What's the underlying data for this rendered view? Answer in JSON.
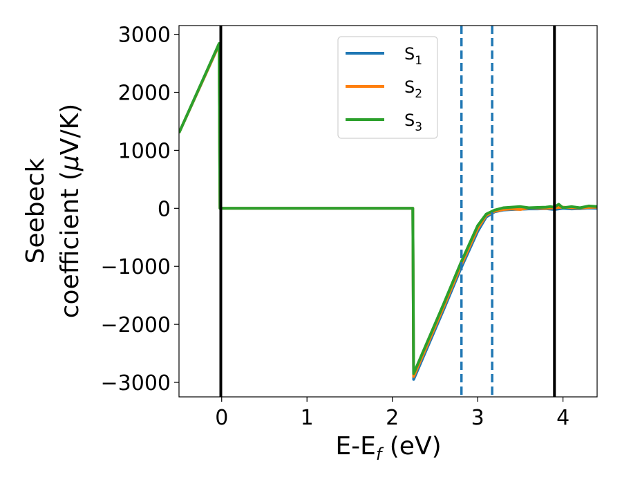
{
  "chart_data": {
    "type": "line",
    "xlabel": "E-E",
    "xlabel_sub": "f",
    "xlabel_unit": " (eV)",
    "ylabel_line1": "Seebeck",
    "ylabel_line2": "coefficient  (",
    "ylabel_mu": "μ",
    "ylabel_unit_tail": "V/K)",
    "xlim": [
      -0.5,
      4.4
    ],
    "ylim": [
      -3250,
      3150
    ],
    "xticks": [
      0,
      1,
      2,
      3,
      4
    ],
    "xtick_labels": [
      "0",
      "1",
      "2",
      "3",
      "4"
    ],
    "yticks": [
      3000,
      2000,
      1000,
      0,
      -1000,
      -2000,
      -3000
    ],
    "ytick_labels": [
      "3000",
      "2000",
      "1000",
      "0",
      "−1000",
      "−2000",
      "−3000"
    ],
    "grid": false,
    "legend_position": "top-center",
    "vertical_lines": [
      {
        "x": -0.01,
        "style": "solid",
        "color": "#000000"
      },
      {
        "x": 3.9,
        "style": "solid",
        "color": "#000000"
      },
      {
        "x": 2.81,
        "style": "dashed",
        "color": "#1f77b4"
      },
      {
        "x": 3.17,
        "style": "dashed",
        "color": "#1f77b4"
      }
    ],
    "series": [
      {
        "name": "S",
        "sub": "1",
        "color": "#1f77b4",
        "x": [
          -0.5,
          -0.03,
          -0.02,
          2.24,
          2.25,
          2.6,
          2.8,
          3.0,
          3.1,
          3.2,
          3.3,
          3.4,
          3.5,
          3.6,
          3.7,
          3.8,
          3.9,
          4.0,
          4.1,
          4.2,
          4.3,
          4.4
        ],
        "y": [
          1300,
          2820,
          0,
          0,
          -2950,
          -1750,
          -1050,
          -400,
          -150,
          -60,
          -30,
          -20,
          -15,
          -10,
          -10,
          -5,
          -20,
          0,
          -10,
          -5,
          5,
          0
        ]
      },
      {
        "name": "S",
        "sub": "2",
        "color": "#ff7f0e",
        "x": [
          -0.5,
          -0.03,
          -0.02,
          2.24,
          2.25,
          2.6,
          2.8,
          3.0,
          3.1,
          3.2,
          3.3,
          3.4,
          3.5,
          3.6,
          3.7,
          3.8,
          3.9,
          4.0,
          4.1,
          4.2,
          4.3,
          4.4
        ],
        "y": [
          1300,
          2820,
          0,
          0,
          -2900,
          -1700,
          -1000,
          -350,
          -120,
          -50,
          -20,
          -10,
          -20,
          10,
          5,
          0,
          10,
          20,
          10,
          5,
          15,
          20
        ]
      },
      {
        "name": "S",
        "sub": "3",
        "color": "#2ca02c",
        "x": [
          -0.5,
          -0.03,
          -0.02,
          2.24,
          2.25,
          2.6,
          2.8,
          3.0,
          3.1,
          3.2,
          3.3,
          3.4,
          3.5,
          3.6,
          3.7,
          3.8,
          3.85,
          3.9,
          3.95,
          4.0,
          4.1,
          4.2,
          4.3,
          4.4
        ],
        "y": [
          1300,
          2840,
          0,
          0,
          -2850,
          -1650,
          -950,
          -300,
          -100,
          -30,
          10,
          20,
          30,
          10,
          15,
          20,
          30,
          20,
          70,
          10,
          30,
          10,
          40,
          30
        ]
      }
    ]
  }
}
